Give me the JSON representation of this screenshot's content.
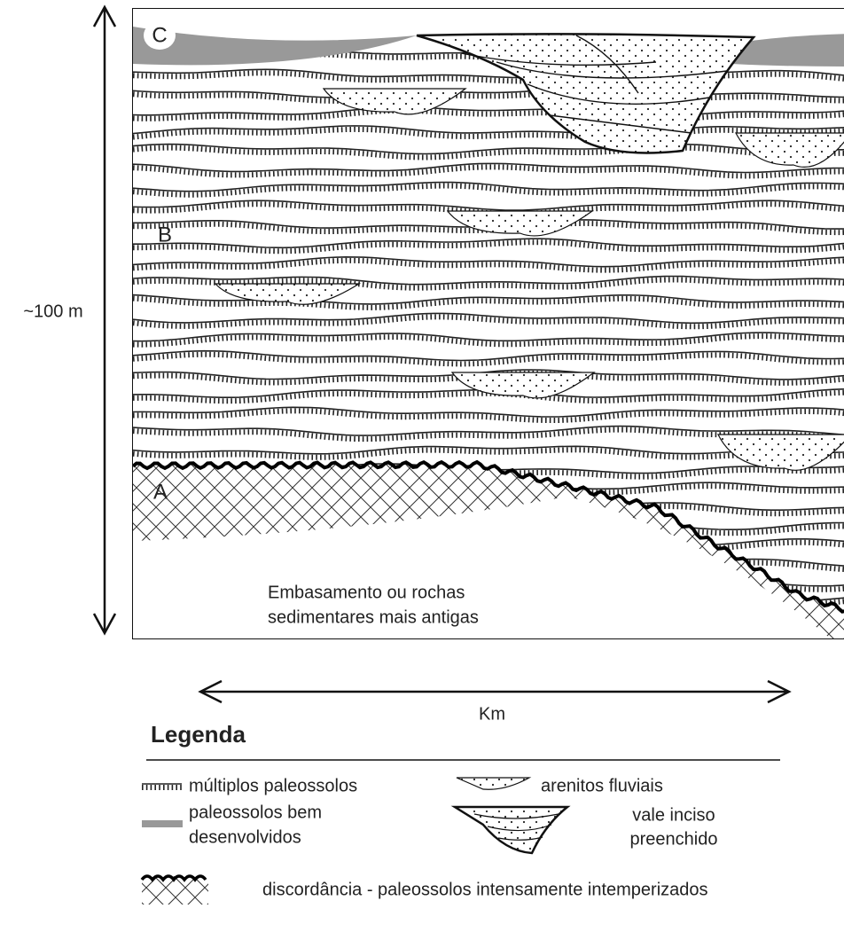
{
  "section": {
    "labels": {
      "c": "C",
      "b": "B",
      "a": "A"
    },
    "basement": [
      "Embasamento ou rochas",
      "sedimentares mais antigas"
    ]
  },
  "scale": {
    "vertical": "~100 m",
    "horizontal": "Km"
  },
  "legend": {
    "title": "Legenda",
    "items": [
      {
        "label": [
          "múltiplos paleossolos"
        ]
      },
      {
        "label": [
          "arenitos fluviais"
        ]
      },
      {
        "label": [
          "paleossolos bem",
          "desenvolvidos"
        ]
      },
      {
        "label": [
          "vale inciso",
          "preenchido"
        ]
      },
      {
        "label": [
          "discordância - paleossolos intensamente intemperizados"
        ]
      }
    ]
  }
}
